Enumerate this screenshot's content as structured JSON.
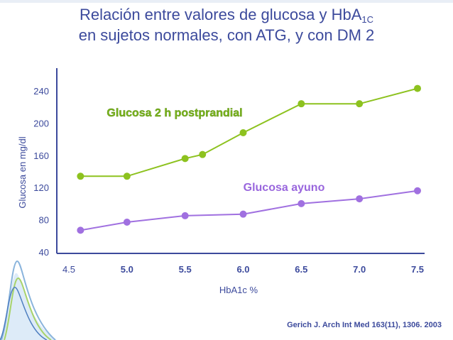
{
  "slide": {
    "title_line1_pre": "Relación entre valores de glucosa y HbA",
    "title_line1_sub": "1C",
    "title_line2": "en sujetos normales, con ATG, y con DM 2",
    "citation": "Gerich J. Arch Int Med 163(11), 1306. 2003"
  },
  "chart_data": {
    "type": "line",
    "xlabel": "HbA1c %",
    "ylabel": "Glucosa en mg/dl",
    "xlim": [
      4.5,
      7.5
    ],
    "ylim": [
      40,
      240
    ],
    "x_ticks": [
      "4.5",
      "5.0",
      "5.5",
      "6.0",
      "6.5",
      "7.0",
      "7.5"
    ],
    "y_ticks": [
      "40",
      "80",
      "120",
      "160",
      "200",
      "240"
    ],
    "grid": false,
    "series": [
      {
        "name": "Glucosa 2 h postprandial",
        "color": "#8dc21f",
        "label_color": "#79b51c",
        "x": [
          4.6,
          5.0,
          5.5,
          5.65,
          6.0,
          6.5,
          7.0,
          7.5
        ],
        "y": [
          134,
          134,
          156,
          161,
          188,
          224,
          224,
          243
        ]
      },
      {
        "name": "Glucosa ayuno",
        "color": "#a070e0",
        "label_color": "#9966dd",
        "x": [
          4.6,
          5.0,
          5.5,
          6.0,
          6.5,
          7.0,
          7.5
        ],
        "y": [
          67,
          77,
          85,
          87,
          100,
          106,
          116
        ]
      }
    ]
  }
}
